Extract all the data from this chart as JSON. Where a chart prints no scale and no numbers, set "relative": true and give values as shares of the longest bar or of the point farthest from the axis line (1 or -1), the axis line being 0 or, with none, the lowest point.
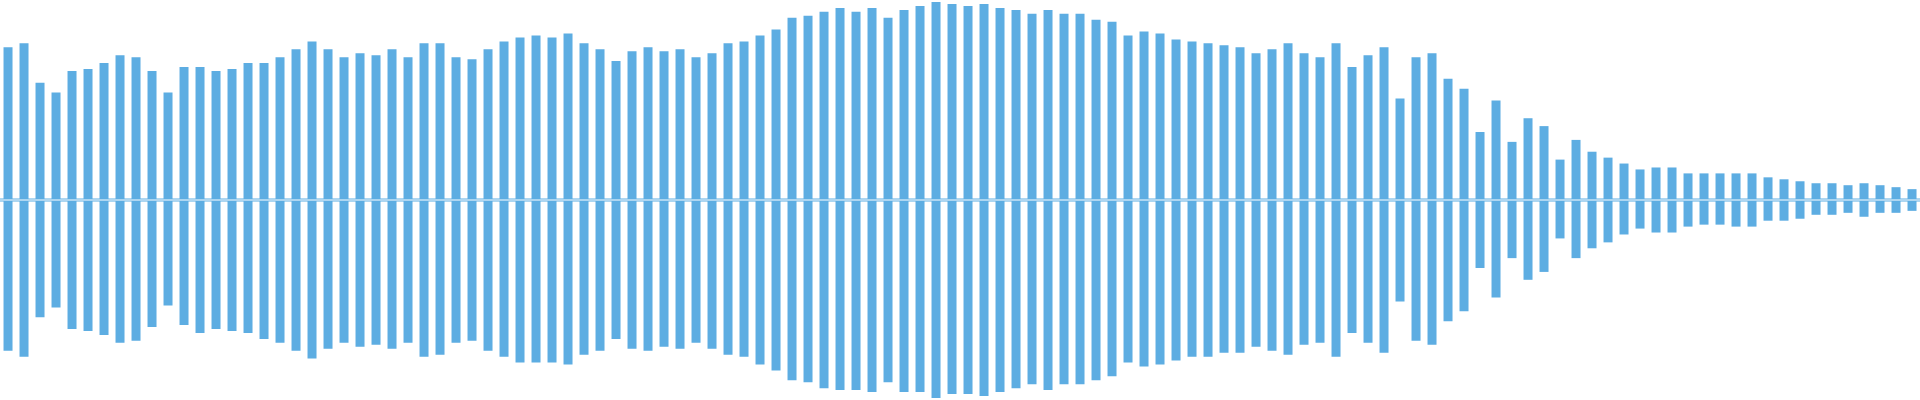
{
  "chart_data": [
    {
      "type": "bar",
      "relative": true,
      "color": "#5dade2",
      "categories": [
        null,
        null,
        null,
        null,
        null,
        null,
        null,
        null,
        null,
        null,
        null,
        null,
        null,
        null,
        null,
        null,
        null,
        null,
        null,
        null,
        null,
        null,
        null,
        null,
        null,
        null,
        null,
        null,
        null,
        null,
        null,
        null,
        null,
        null,
        null,
        null,
        null,
        null,
        null,
        null,
        null,
        null,
        null,
        null,
        null,
        null,
        null,
        null,
        null,
        null,
        null,
        null,
        null,
        null,
        null,
        null,
        null,
        null,
        null,
        null,
        null,
        null,
        null,
        null,
        null,
        null,
        null,
        null,
        null,
        null,
        null,
        null,
        null,
        null,
        null,
        null,
        null,
        null,
        null,
        null,
        null,
        null,
        null,
        null,
        null,
        null,
        null,
        null,
        null,
        null,
        null,
        null,
        null,
        null,
        null,
        null,
        null,
        null,
        null,
        null,
        null,
        null,
        null,
        null,
        null,
        null,
        null,
        null,
        null,
        null,
        null,
        null,
        null,
        null,
        null,
        null,
        null,
        null,
        null,
        null
      ],
      "values": [
        0.77,
        0.79,
        0.59,
        0.54,
        0.65,
        0.66,
        0.69,
        0.73,
        0.72,
        0.65,
        0.54,
        0.67,
        0.67,
        0.65,
        0.66,
        0.69,
        0.69,
        0.72,
        0.76,
        0.8,
        0.76,
        0.72,
        0.74,
        0.73,
        0.76,
        0.72,
        0.79,
        0.79,
        0.72,
        0.71,
        0.76,
        0.8,
        0.82,
        0.83,
        0.82,
        0.84,
        0.79,
        0.76,
        0.7,
        0.75,
        0.77,
        0.75,
        0.76,
        0.72,
        0.74,
        0.79,
        0.8,
        0.83,
        0.86,
        0.92,
        0.93,
        0.95,
        0.97,
        0.95,
        0.97,
        0.92,
        0.96,
        0.98,
        1.0,
        0.99,
        0.98,
        0.99,
        0.97,
        0.96,
        0.94,
        0.96,
        0.94,
        0.94,
        0.91,
        0.9,
        0.83,
        0.85,
        0.84,
        0.81,
        0.8,
        0.79,
        0.78,
        0.77,
        0.74,
        0.76,
        0.79,
        0.74,
        0.72,
        0.79,
        0.67,
        0.73,
        0.77,
        0.51,
        0.72,
        0.74,
        0.61,
        0.56,
        0.34,
        0.5,
        0.29,
        0.41,
        0.37,
        0.2,
        0.3,
        0.24,
        0.21,
        0.18,
        0.15,
        0.16,
        0.16,
        0.13,
        0.13,
        0.13,
        0.13,
        0.13,
        0.11,
        0.1,
        0.09,
        0.08,
        0.08,
        0.07,
        0.08,
        0.07,
        0.06,
        0.05
      ]
    },
    {
      "type": "bar",
      "relative": true,
      "color": "#5dade2",
      "categories": [
        null,
        null,
        null,
        null,
        null,
        null,
        null,
        null,
        null,
        null,
        null,
        null,
        null,
        null,
        null,
        null,
        null,
        null,
        null,
        null,
        null,
        null,
        null,
        null,
        null,
        null,
        null,
        null,
        null,
        null,
        null,
        null,
        null,
        null,
        null,
        null,
        null,
        null,
        null,
        null,
        null,
        null,
        null,
        null,
        null,
        null,
        null,
        null,
        null,
        null,
        null,
        null,
        null,
        null,
        null,
        null,
        null,
        null,
        null,
        null,
        null,
        null,
        null,
        null,
        null,
        null,
        null,
        null,
        null,
        null,
        null,
        null,
        null,
        null,
        null,
        null,
        null,
        null,
        null,
        null,
        null,
        null,
        null,
        null,
        null,
        null,
        null,
        null,
        null,
        null,
        null,
        null,
        null,
        null,
        null,
        null,
        null,
        null,
        null,
        null,
        null,
        null,
        null,
        null,
        null,
        null,
        null,
        null,
        null,
        null,
        null,
        null,
        null,
        null,
        null,
        null,
        null,
        null,
        null,
        null
      ],
      "values": [
        -0.76,
        -0.79,
        -0.59,
        -0.54,
        -0.65,
        -0.66,
        -0.68,
        -0.72,
        -0.71,
        -0.64,
        -0.53,
        -0.63,
        -0.67,
        -0.65,
        -0.66,
        -0.67,
        -0.7,
        -0.72,
        -0.76,
        -0.8,
        -0.75,
        -0.72,
        -0.74,
        -0.73,
        -0.75,
        -0.72,
        -0.79,
        -0.78,
        -0.72,
        -0.71,
        -0.76,
        -0.79,
        -0.82,
        -0.82,
        -0.82,
        -0.83,
        -0.78,
        -0.76,
        -0.7,
        -0.75,
        -0.76,
        -0.74,
        -0.75,
        -0.72,
        -0.75,
        -0.78,
        -0.79,
        -0.83,
        -0.86,
        -0.91,
        -0.92,
        -0.95,
        -0.96,
        -0.96,
        -0.97,
        -0.92,
        -0.97,
        -0.97,
        -1.0,
        -0.98,
        -0.98,
        -0.99,
        -0.97,
        -0.95,
        -0.93,
        -0.96,
        -0.93,
        -0.93,
        -0.91,
        -0.89,
        -0.82,
        -0.84,
        -0.83,
        -0.81,
        -0.79,
        -0.79,
        -0.77,
        -0.77,
        -0.74,
        -0.76,
        -0.78,
        -0.73,
        -0.72,
        -0.79,
        -0.67,
        -0.72,
        -0.77,
        -0.51,
        -0.71,
        -0.73,
        -0.61,
        -0.56,
        -0.34,
        -0.49,
        -0.29,
        -0.4,
        -0.36,
        -0.19,
        -0.29,
        -0.24,
        -0.21,
        -0.17,
        -0.14,
        -0.16,
        -0.16,
        -0.13,
        -0.12,
        -0.12,
        -0.13,
        -0.13,
        -0.1,
        -0.1,
        -0.09,
        -0.07,
        -0.07,
        -0.06,
        -0.08,
        -0.06,
        -0.06,
        -0.05
      ]
    }
  ]
}
